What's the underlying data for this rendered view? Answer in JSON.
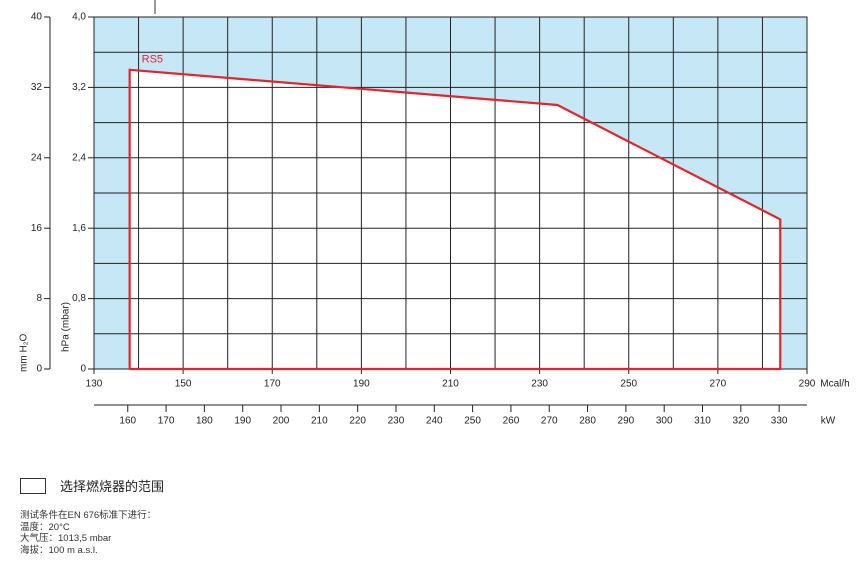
{
  "chart_data": {
    "type": "line",
    "x_label": "Mcal/h",
    "x2_label": "kW",
    "y_label": "hPa (mbar)",
    "y2_label": "mm H₂O",
    "series": [
      {
        "name": "RS5",
        "color": "#e3242b",
        "x": [
          138,
          138,
          234,
          284,
          284,
          138
        ],
        "values": [
          0,
          3.4,
          3.0,
          1.7,
          0,
          0
        ]
      }
    ],
    "xlim": [
      130,
      290
    ],
    "xticks": [
      130,
      150,
      170,
      190,
      210,
      230,
      250,
      270,
      290
    ],
    "xgrid": [
      140,
      150,
      160,
      170,
      180,
      190,
      200,
      210,
      220,
      230,
      240,
      250,
      260,
      270,
      280
    ],
    "ylim": [
      0,
      4.0
    ],
    "yticks": [
      0,
      {
        "value": 0.8,
        "label": "0,8"
      },
      {
        "value": 1.6,
        "label": "1,6"
      },
      {
        "value": 2.4,
        "label": "2,4"
      },
      {
        "value": 3.2,
        "label": "3,2"
      },
      {
        "value": 4.0,
        "label": "4,0"
      }
    ],
    "ygrid": [
      0.4,
      0.8,
      1.2,
      1.6,
      2.0,
      2.4,
      2.8,
      3.2,
      3.6
    ],
    "y2lim": [
      0,
      40
    ],
    "y2ticks": [
      0,
      8,
      16,
      24,
      32,
      40
    ],
    "x2lim": [
      151.19,
      337.27
    ],
    "x2ticks": [
      160,
      170,
      180,
      190,
      200,
      210,
      220,
      230,
      240,
      250,
      260,
      270,
      280,
      290,
      300,
      310,
      320,
      330
    ],
    "background_color": "#c6e7f6",
    "legend": {
      "label": "选择燃烧器的范围"
    }
  },
  "notes": [
    "测试条件在EN 676标准下进行：",
    "温度：20°C",
    "大气压：1013,5 mbar",
    "海拔：100 m a.s.l."
  ]
}
